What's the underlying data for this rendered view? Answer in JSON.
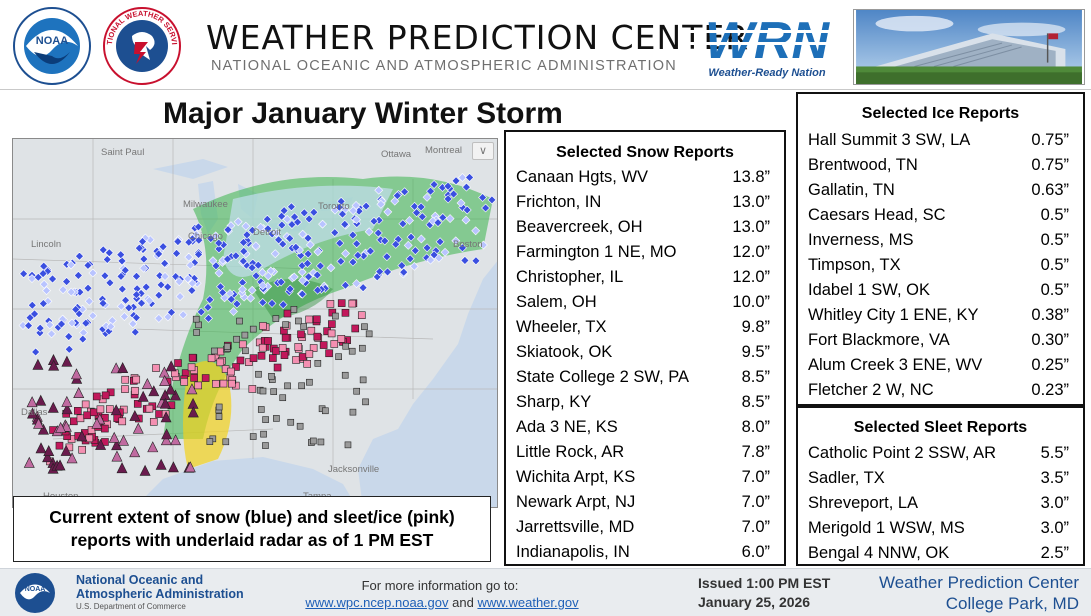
{
  "header": {
    "title": "WEATHER PREDICTION CENTER",
    "subtitle": "NATIONAL OCEANIC AND ATMOSPHERIC ADMINISTRATION",
    "noaa_logo_text": "NOAA",
    "nws_logo_text": "NATIONAL WEATHER SERVICE",
    "wrn_logo_text": "WRN",
    "wrn_tagline": "Weather-Ready Nation"
  },
  "storm_title": "Major January Winter Storm",
  "map": {
    "caption_line1": "Current extent of snow (blue) and sleet/ice (pink)",
    "caption_line2": "reports with underlaid radar as of 1 PM EST",
    "labels": [
      "Saint Paul",
      "Milwaukee",
      "Chicago",
      "Detroit",
      "Toronto",
      "Ottawa",
      "Montreal",
      "Lincoln",
      "Boston",
      "Jacksonville",
      "Tampa",
      "Houston",
      "Dallas"
    ],
    "colors": {
      "snow": "#3a4fe0",
      "snow_light": "#b9c4ff",
      "ice": "#c2185b",
      "ice_light": "#f48fb1",
      "sleet": "#6a1b4d",
      "radar_green": "#39b54a",
      "radar_yellow": "#f2d21b"
    }
  },
  "snow_reports": {
    "title": "Selected Snow Reports",
    "rows": [
      {
        "location": "Canaan Hgts, WV",
        "value": "13.8”"
      },
      {
        "location": "Frichton, IN",
        "value": "13.0”"
      },
      {
        "location": "Beavercreek, OH",
        "value": "13.0”"
      },
      {
        "location": "Farmington 1 NE, MO",
        "value": "12.0”"
      },
      {
        "location": "Christopher, IL",
        "value": "12.0”"
      },
      {
        "location": "Salem, OH",
        "value": "10.0”"
      },
      {
        "location": "Wheeler, TX",
        "value": "9.8”"
      },
      {
        "location": "Skiatook, OK",
        "value": "9.5”"
      },
      {
        "location": "State College 2 SW, PA",
        "value": "8.5”"
      },
      {
        "location": "Sharp, KY",
        "value": "8.5”"
      },
      {
        "location": "Ada 3 NE, KS",
        "value": "8.0”"
      },
      {
        "location": "Little Rock, AR",
        "value": "7.8”"
      },
      {
        "location": "Wichita Arpt, KS",
        "value": "7.0”"
      },
      {
        "location": "Newark Arpt, NJ",
        "value": "7.0”"
      },
      {
        "location": "Jarrettsville, MD",
        "value": "7.0”"
      },
      {
        "location": "Indianapolis, IN",
        "value": "6.0”"
      }
    ]
  },
  "ice_reports": {
    "title": "Selected Ice Reports",
    "rows": [
      {
        "location": "Hall Summit 3 SW, LA",
        "value": "0.75”"
      },
      {
        "location": "Brentwood, TN",
        "value": "0.75”"
      },
      {
        "location": "Gallatin, TN",
        "value": "0.63”"
      },
      {
        "location": "Caesars Head, SC",
        "value": "0.5”"
      },
      {
        "location": "Inverness, MS",
        "value": "0.5”"
      },
      {
        "location": "Timpson, TX",
        "value": "0.5”"
      },
      {
        "location": "Idabel 1 SW, OK",
        "value": "0.5”"
      },
      {
        "location": "Whitley City 1 ENE, KY",
        "value": "0.38”"
      },
      {
        "location": "Fort Blackmore, VA",
        "value": "0.30”"
      },
      {
        "location": "Alum Creek 3 ENE, WV",
        "value": "0.25”"
      },
      {
        "location": "Fletcher 2 W, NC",
        "value": "0.23”"
      }
    ]
  },
  "sleet_reports": {
    "title": "Selected Sleet Reports",
    "rows": [
      {
        "location": "Catholic Point 2 SSW, AR",
        "value": "5.5”"
      },
      {
        "location": "Sadler, TX",
        "value": "3.5”"
      },
      {
        "location": "Shreveport, LA",
        "value": "3.0”"
      },
      {
        "location": "Merigold 1 WSW, MS",
        "value": "3.0”"
      },
      {
        "location": "Bengal 4 NNW, OK",
        "value": "2.5”"
      }
    ]
  },
  "footer": {
    "org_line1": "National Oceanic and",
    "org_line2": "Atmospheric Administration",
    "org_line3": "U.S. Department of Commerce",
    "info_text": "For more information go to:",
    "link1": "www.wpc.ncep.noaa.gov",
    "link_and": "and",
    "link2": "www.weather.gov",
    "issued": "Issued 1:00 PM EST",
    "date": "January 25, 2026",
    "wpc_name": "Weather Prediction Center",
    "location": "College Park, MD"
  }
}
